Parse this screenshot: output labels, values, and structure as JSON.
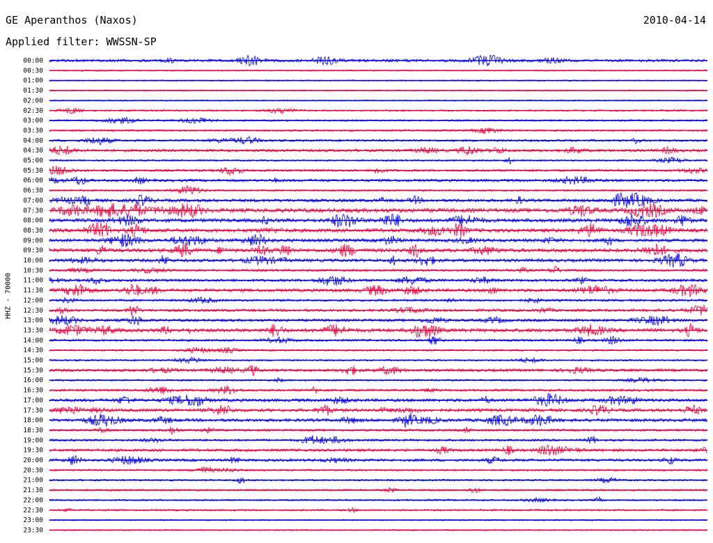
{
  "header": {
    "station": "GE Aperanthos (Naxos)",
    "date": "2010-04-14",
    "filter": "Applied filter: WWSSN-SP"
  },
  "chart_data": {
    "type": "line",
    "title": "GE Aperanthos (Naxos)",
    "ylabel": "HHZ - 70000",
    "rows": [
      "00:00",
      "00:30",
      "01:00",
      "01:30",
      "02:00",
      "02:30",
      "03:00",
      "03:30",
      "04:00",
      "04:30",
      "05:00",
      "05:30",
      "06:00",
      "06:30",
      "07:00",
      "07:30",
      "08:00",
      "08:30",
      "09:00",
      "09:30",
      "10:00",
      "10:30",
      "11:00",
      "11:30",
      "12:00",
      "12:30",
      "13:00",
      "13:30",
      "14:00",
      "14:30",
      "15:00",
      "15:30",
      "16:00",
      "16:30",
      "17:00",
      "17:30",
      "18:00",
      "18:30",
      "19:00",
      "19:30",
      "20:00",
      "20:30",
      "21:00",
      "21:30",
      "22:00",
      "22:30",
      "23:00",
      "23:30"
    ],
    "series_colors": [
      "#0000e6",
      "#e8003c"
    ],
    "row_activity": [
      4,
      1,
      1,
      1,
      1,
      2,
      2,
      2,
      3,
      4,
      2,
      3,
      4,
      2,
      5,
      7,
      6,
      6,
      5,
      6,
      5,
      3,
      4,
      5,
      3,
      4,
      4,
      6,
      3,
      2,
      2,
      4,
      2,
      3,
      5,
      5,
      5,
      3,
      3,
      4,
      4,
      2,
      2,
      2,
      2,
      2,
      1,
      1
    ]
  }
}
